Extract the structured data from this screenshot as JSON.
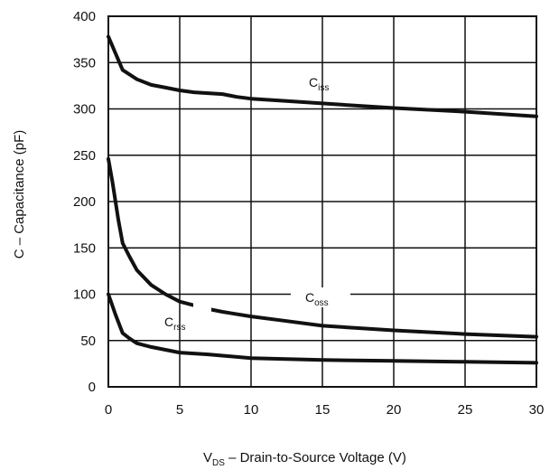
{
  "chart_data": {
    "type": "line",
    "xlabel": {
      "main": "V",
      "sub": "DS",
      "rest": " – Drain-to-Source Voltage (V)"
    },
    "ylabel": "C  –  Capacitance (pF)",
    "xlim": [
      0,
      30
    ],
    "ylim": [
      0,
      400
    ],
    "x_ticks": [
      "0",
      "5",
      "10",
      "15",
      "20",
      "25",
      "30"
    ],
    "y_ticks": [
      "0",
      "50",
      "100",
      "150",
      "200",
      "250",
      "300",
      "350",
      "400"
    ],
    "grid": true,
    "series": [
      {
        "name": {
          "main": "C",
          "sub": "iss"
        },
        "x": [
          0,
          0.5,
          1,
          2,
          3,
          4,
          5,
          6,
          7,
          8,
          9,
          10,
          12,
          15,
          20,
          25,
          30
        ],
        "y": [
          378,
          360,
          342,
          332,
          326,
          323,
          320,
          318,
          317,
          316,
          313,
          311,
          309,
          306,
          301,
          297,
          292
        ]
      },
      {
        "name": {
          "main": "C",
          "sub": "oss"
        },
        "x": [
          0,
          0.3,
          0.7,
          1,
          1.5,
          2,
          3,
          4,
          5,
          7,
          8,
          10,
          12,
          15,
          20,
          25,
          30
        ],
        "y": [
          246,
          220,
          180,
          155,
          140,
          126,
          110,
          100,
          92,
          84,
          81,
          76,
          72,
          66,
          61,
          57,
          54
        ]
      },
      {
        "name": {
          "main": "C",
          "sub": "rss"
        },
        "x": [
          0,
          0.5,
          1,
          1.5,
          2,
          3,
          4,
          5,
          7,
          10,
          15,
          20,
          25,
          30
        ],
        "y": [
          100,
          78,
          58,
          52,
          47,
          43,
          40,
          37,
          35,
          31,
          29,
          28,
          27,
          26
        ]
      }
    ]
  }
}
